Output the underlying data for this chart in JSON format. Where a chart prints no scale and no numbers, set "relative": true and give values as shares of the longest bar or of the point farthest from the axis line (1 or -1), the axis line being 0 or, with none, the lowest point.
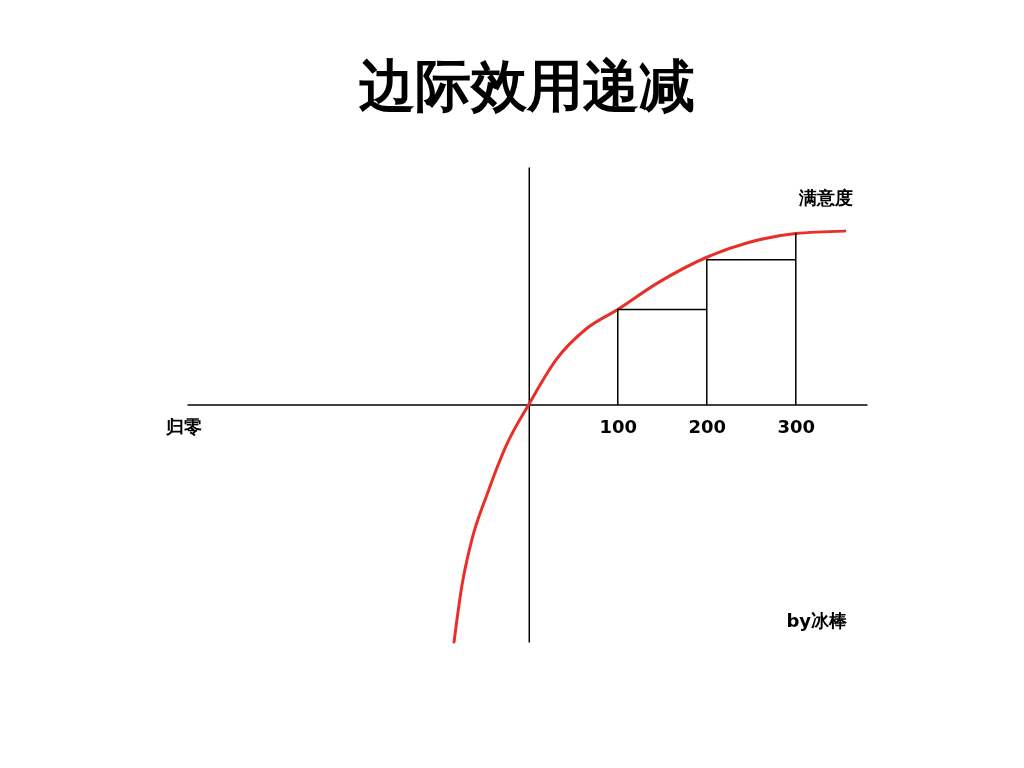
{
  "chart_data": {
    "type": "line",
    "title": "边际效用递减",
    "xlabel": "归零",
    "ylabel": "满意度",
    "relative": true,
    "xlim": [
      -384,
      380
    ],
    "xticks": [
      100,
      200,
      300
    ],
    "tick_labels": "x",
    "grid": false,
    "marker": "none",
    "line_style": "solid",
    "annotations": [
      "by冰棒"
    ],
    "series": [
      {
        "color": "#e8302a",
        "x": [
          -84,
          -75,
          -64,
          -47,
          -25,
          0,
          31,
          65,
          100,
          144,
          200,
          245,
          300,
          355
        ],
        "values": [
          -1,
          -0.76,
          -0.57,
          -0.38,
          -0.17,
          0,
          0.19,
          0.32,
          0.4,
          0.51,
          0.62,
          0.68,
          0.72,
          0.73
        ]
      },
      {
        "color": "#000000",
        "x": [
          100,
          100,
          200,
          200,
          200,
          300,
          300,
          300
        ],
        "values": [
          0,
          0.4,
          0.4,
          0,
          0.61,
          0.61,
          0,
          0.72
        ]
      }
    ]
  }
}
